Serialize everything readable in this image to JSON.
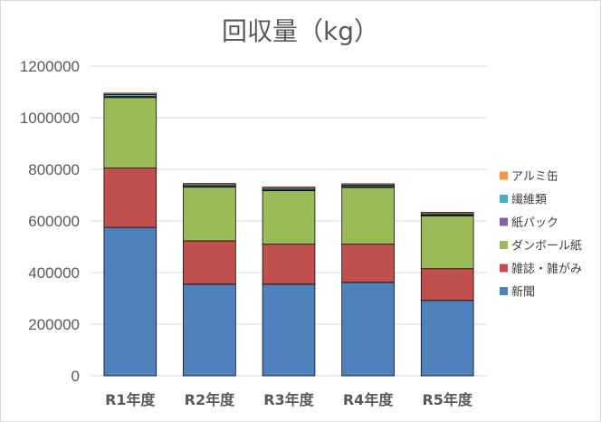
{
  "chart_data": {
    "type": "bar",
    "stacked": true,
    "title": "回収量（kg）",
    "xlabel": "",
    "ylabel": "",
    "ylim": [
      0,
      1200000
    ],
    "yticks": [
      "0",
      "200000",
      "400000",
      "600000",
      "800000",
      "1000000",
      "1200000"
    ],
    "ytick_values": [
      0,
      200000,
      400000,
      600000,
      800000,
      1000000,
      1200000
    ],
    "grid": true,
    "legend_position": "right",
    "categories": [
      "R1年度",
      "R2年度",
      "R3年度",
      "R4年度",
      "R5年度"
    ],
    "series": [
      {
        "name": "新聞",
        "color": "#4f81bd",
        "values": [
          575000,
          355000,
          355000,
          362000,
          292000
        ]
      },
      {
        "name": "雑誌・雑がみ",
        "color": "#c0504d",
        "values": [
          230000,
          168000,
          155000,
          148000,
          123000
        ]
      },
      {
        "name": "ダンボール紙",
        "color": "#9bbb59",
        "values": [
          273000,
          208000,
          207000,
          220000,
          205000
        ]
      },
      {
        "name": "紙パック",
        "color": "#8064a2",
        "values": [
          4000,
          3000,
          3000,
          3000,
          3000
        ]
      },
      {
        "name": "繊維類",
        "color": "#4bacc6",
        "values": [
          8000,
          6000,
          6000,
          6000,
          5000
        ]
      },
      {
        "name": "アルミ缶",
        "color": "#f79646",
        "values": [
          5000,
          5000,
          5000,
          5000,
          5000
        ]
      }
    ]
  }
}
